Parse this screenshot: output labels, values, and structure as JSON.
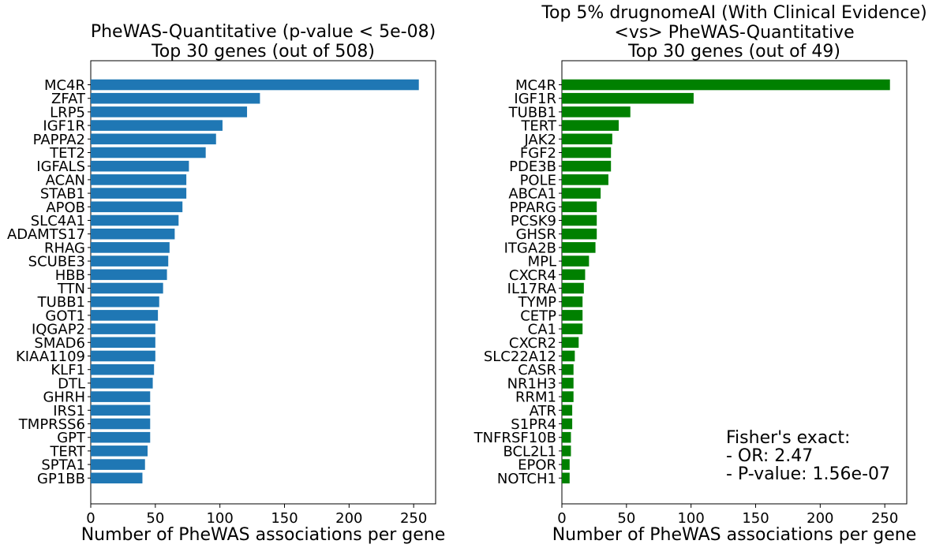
{
  "chart_data": [
    {
      "type": "bar",
      "orientation": "horizontal",
      "title": [
        "PheWAS-Quantitative (p-value < 5e-08)",
        "Top 30 genes (out of 508)"
      ],
      "xlabel": "Number of PheWAS associations per gene",
      "ylabel": "",
      "xlim": [
        0,
        267
      ],
      "xticks": [
        0,
        50,
        100,
        150,
        200,
        250
      ],
      "grid": false,
      "color": "#1f77b4",
      "categories": [
        "MC4R",
        "ZFAT",
        "LRP5",
        "IGF1R",
        "PAPPA2",
        "TET2",
        "IGFALS",
        "ACAN",
        "STAB1",
        "APOB",
        "SLC4A1",
        "ADAMTS17",
        "RHAG",
        "SCUBE3",
        "HBB",
        "TTN",
        "TUBB1",
        "GOT1",
        "IQGAP2",
        "SMAD6",
        "KIAA1109",
        "KLF1",
        "DTL",
        "GHRH",
        "IRS1",
        "TMPRSS6",
        "GPT",
        "TERT",
        "SPTA1",
        "GP1BB"
      ],
      "values": [
        254,
        131,
        121,
        102,
        97,
        89,
        76,
        74,
        74,
        71,
        68,
        65,
        61,
        60,
        59,
        56,
        53,
        52,
        50,
        50,
        50,
        49,
        48,
        46,
        46,
        46,
        46,
        44,
        42,
        40
      ],
      "annotation": []
    },
    {
      "type": "bar",
      "orientation": "horizontal",
      "title": [
        "Top 5% drugnomeAI (With Clinical Evidence)",
        "<vs>  PheWAS-Quantitative",
        "Top 30 genes (out of 49)"
      ],
      "xlabel": "Number of PheWAS associations per gene",
      "ylabel": "",
      "xlim": [
        0,
        267
      ],
      "xticks": [
        0,
        50,
        100,
        150,
        200,
        250
      ],
      "grid": false,
      "color": "#008000",
      "categories": [
        "MC4R",
        "IGF1R",
        "TUBB1",
        "TERT",
        "JAK2",
        "FGF2",
        "PDE3B",
        "POLE",
        "ABCA1",
        "PPARG",
        "PCSK9",
        "GHSR",
        "ITGA2B",
        "MPL",
        "CXCR4",
        "IL17RA",
        "TYMP",
        "CETP",
        "CA1",
        "CXCR2",
        "SLC22A12",
        "CASR",
        "NR1H3",
        "RRM1",
        "ATR",
        "S1PR4",
        "TNFRSF10B",
        "BCL2L1",
        "EPOR",
        "NOTCH1"
      ],
      "values": [
        254,
        102,
        53,
        44,
        39,
        38,
        38,
        36,
        30,
        27,
        27,
        27,
        26,
        21,
        18,
        17,
        16,
        16,
        16,
        13,
        10,
        9,
        9,
        9,
        8,
        8,
        7,
        7,
        6,
        6
      ],
      "annotation": [
        "Fisher's exact:",
        "- OR: 2.47",
        "- P-value: 1.56e-07"
      ]
    }
  ]
}
